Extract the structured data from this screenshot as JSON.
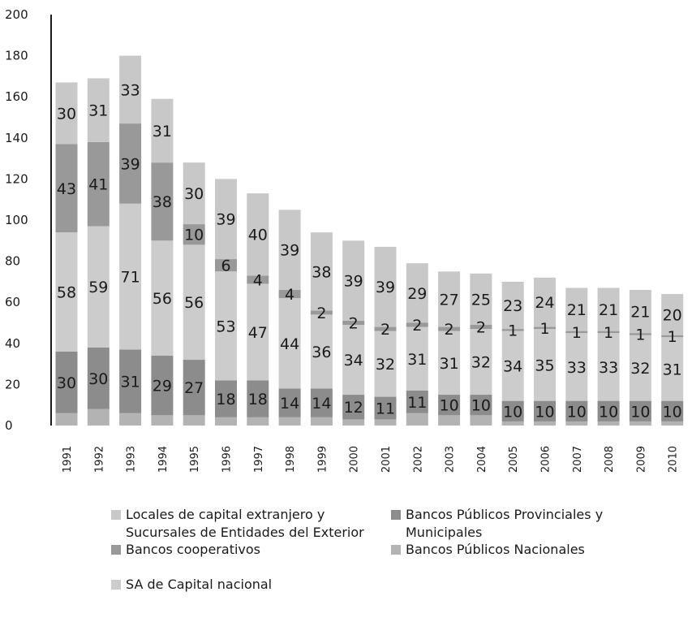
{
  "chart_data": {
    "type": "bar",
    "stacked": true,
    "categories": [
      "1991",
      "1992",
      "1993",
      "1994",
      "1995",
      "1996",
      "1997",
      "1998",
      "1999",
      "2000",
      "2001",
      "2002",
      "2003",
      "2004",
      "2005",
      "2006",
      "2007",
      "2008",
      "2009",
      "2010"
    ],
    "ylim": [
      0,
      200
    ],
    "yticks": [
      "0",
      "20",
      "40",
      "60",
      "80",
      "100",
      "120",
      "140",
      "160",
      "180",
      "200"
    ],
    "series": [
      {
        "name": "Bancos Públicos Nacionales",
        "color": "#b3b3b3",
        "labeled": false,
        "values": [
          6,
          8,
          6,
          5,
          5,
          4,
          4,
          4,
          4,
          3,
          3,
          6,
          5,
          5,
          2,
          2,
          2,
          2,
          2,
          2
        ]
      },
      {
        "name": "Bancos Públicos Provinciales y Municipales",
        "color": "#8c8c8c",
        "labeled": true,
        "values": [
          30,
          30,
          31,
          29,
          27,
          18,
          18,
          14,
          14,
          12,
          11,
          11,
          10,
          10,
          10,
          10,
          10,
          10,
          10,
          10
        ]
      },
      {
        "name": "SA de Capital nacional",
        "color": "#cccccc",
        "labeled": true,
        "values": [
          58,
          59,
          71,
          56,
          56,
          53,
          47,
          44,
          36,
          34,
          32,
          31,
          31,
          32,
          34,
          35,
          33,
          33,
          32,
          31
        ]
      },
      {
        "name": "Bancos cooperativos",
        "color": "#999999",
        "labeled": true,
        "values": [
          43,
          41,
          39,
          38,
          10,
          6,
          4,
          4,
          2,
          2,
          2,
          2,
          2,
          2,
          1,
          1,
          1,
          1,
          1,
          1
        ]
      },
      {
        "name": "Locales de capital extranjero y Sucursales de Entidades del Exterior",
        "color": "#c8c8c8",
        "labeled": true,
        "values": [
          30,
          31,
          33,
          31,
          30,
          39,
          40,
          39,
          38,
          39,
          39,
          29,
          27,
          25,
          23,
          24,
          21,
          21,
          21,
          20
        ]
      }
    ],
    "legend_position": "bottom",
    "title": "",
    "xlabel": "",
    "ylabel": "",
    "grid": false
  },
  "legend": {
    "items": [
      {
        "label_lines": [
          "Locales de capital extranjero y",
          "Sucursales de Entidades del Exterior"
        ],
        "color": "#c8c8c8"
      },
      {
        "label_lines": [
          "Bancos Públicos Provinciales y",
          "Municipales"
        ],
        "color": "#8c8c8c"
      },
      {
        "label_lines": [
          "Bancos cooperativos"
        ],
        "color": "#999999"
      },
      {
        "label_lines": [
          "Bancos Públicos Nacionales"
        ],
        "color": "#b3b3b3"
      },
      {
        "label_lines": [
          "SA de Capital nacional"
        ],
        "color": "#cccccc"
      }
    ]
  }
}
